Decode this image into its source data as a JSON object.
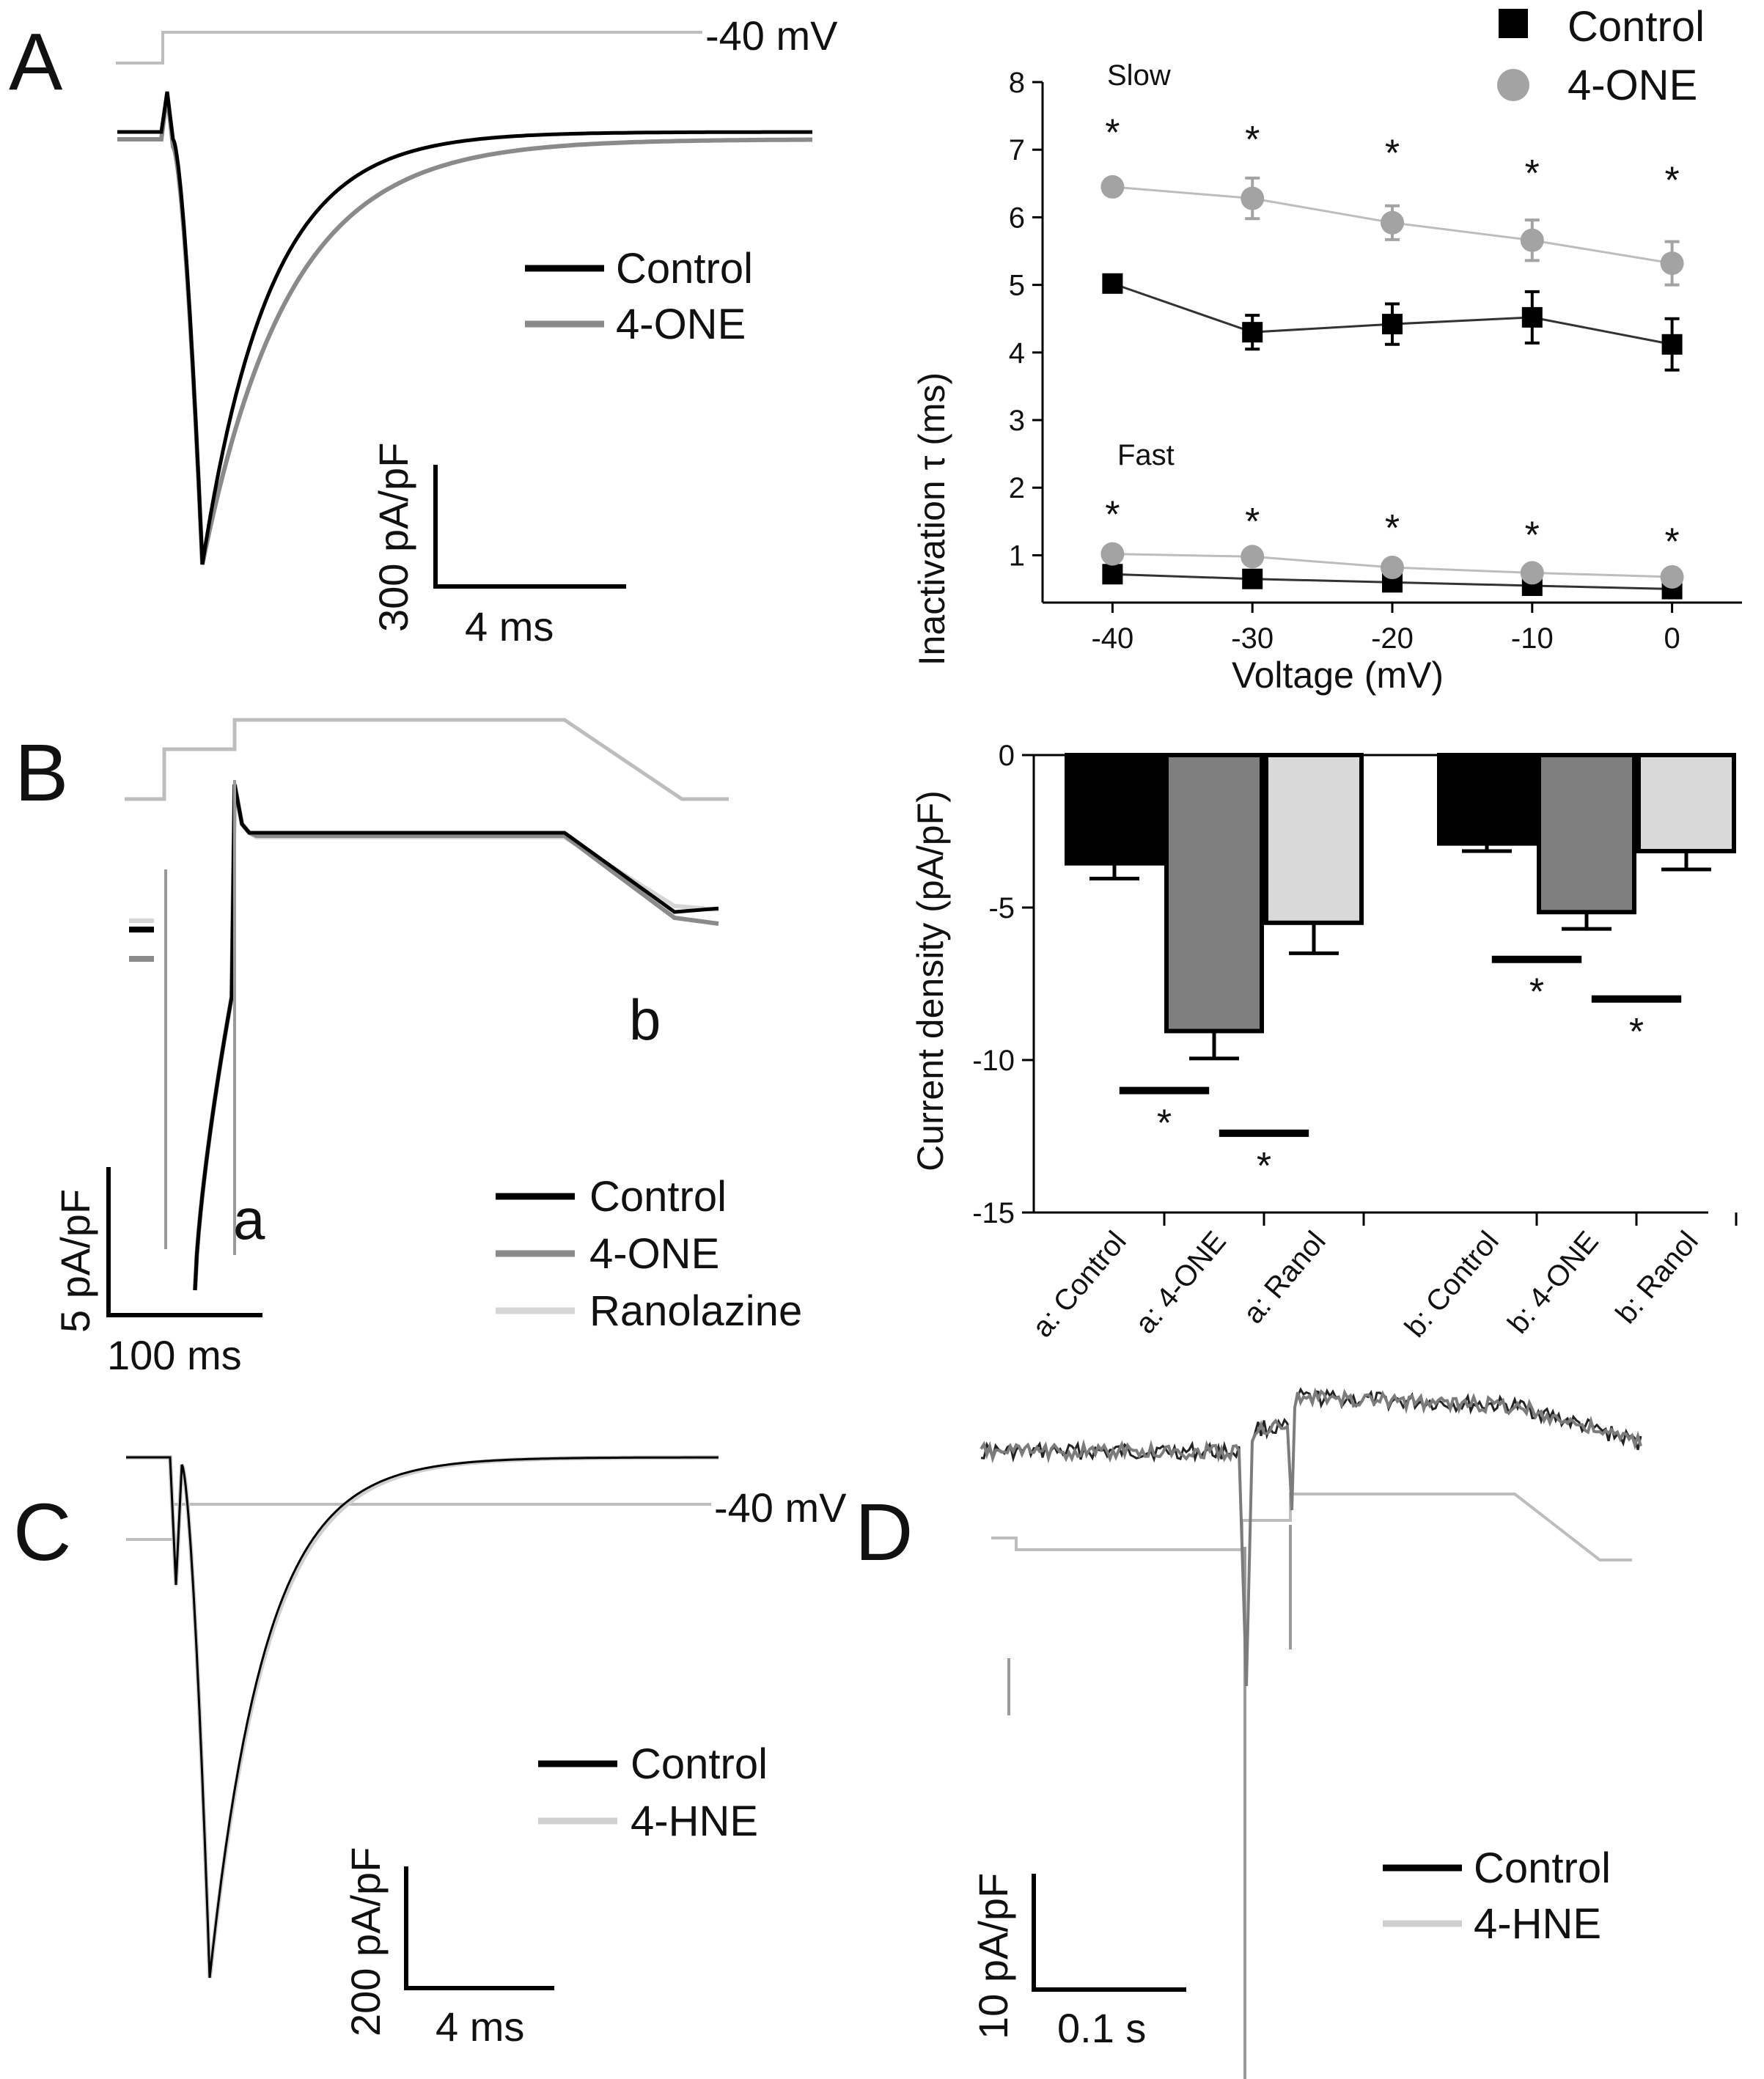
{
  "colors": {
    "control": "#000000",
    "treatment": "#8a8a8a",
    "ranolazine": "#d6d6d6",
    "hne": "#cfcfcf",
    "protocol": "#bdbdbd",
    "bar_control": "#000000",
    "bar_one": "#7f7f7f",
    "bar_ranol": "#d9d9d9"
  },
  "panels": {
    "A": {
      "letter": "A",
      "voltage_label": "-40 mV",
      "legend": [
        "Control",
        "4-ONE"
      ],
      "scale_y": "300 pA/pF",
      "scale_x": "4 ms"
    },
    "B": {
      "letter": "B",
      "legend": [
        "Control",
        "4-ONE",
        "Ranolazine"
      ],
      "label_a": "a",
      "label_b": "b",
      "scale_y": "5 pA/pF",
      "scale_x": "100 ms"
    },
    "C": {
      "letter": "C",
      "voltage_label": "-40 mV",
      "legend": [
        "Control",
        "4-HNE"
      ],
      "scale_y": "200 pA/pF",
      "scale_x": "4 ms"
    },
    "D": {
      "letter": "D",
      "legend": [
        "Control",
        "4-HNE"
      ],
      "scale_y": "10 pA/pF",
      "scale_x": "0.1 s"
    }
  },
  "chart_data": [
    {
      "panel": "A",
      "type": "scatter",
      "title": "",
      "xlabel": "Voltage (mV)",
      "ylabel": "Inactivation τ (ms)",
      "xlim": [
        -45,
        5
      ],
      "ylim": [
        0.3,
        8
      ],
      "x": [
        -40,
        -30,
        -20,
        -10,
        0
      ],
      "xticks": [
        "-40",
        "-30",
        "-20",
        "-10",
        "0"
      ],
      "yticks": [
        "1",
        "2",
        "3",
        "4",
        "5",
        "6",
        "7",
        "8"
      ],
      "legend": [
        "Control",
        "4-ONE"
      ],
      "legend_position": "top-right",
      "group_labels": [
        "Slow",
        "Fast"
      ],
      "significance": "*",
      "series": [
        {
          "name": "Control",
          "group": "Slow",
          "values": [
            5.02,
            4.3,
            4.42,
            4.52,
            4.12
          ],
          "errors": [
            0.12,
            0.25,
            0.3,
            0.38,
            0.38
          ]
        },
        {
          "name": "4-ONE",
          "group": "Slow",
          "values": [
            6.45,
            6.28,
            5.92,
            5.66,
            5.32
          ],
          "errors": [
            0.08,
            0.3,
            0.25,
            0.3,
            0.32
          ]
        },
        {
          "name": "Control",
          "group": "Fast",
          "values": [
            0.72,
            0.65,
            0.6,
            0.55,
            0.5
          ],
          "errors": [
            0.05,
            0.05,
            0.05,
            0.05,
            0.05
          ]
        },
        {
          "name": "4-ONE",
          "group": "Fast",
          "values": [
            1.02,
            0.98,
            0.82,
            0.74,
            0.68
          ],
          "errors": [
            0.05,
            0.05,
            0.05,
            0.05,
            0.05
          ]
        }
      ],
      "star_y": [
        7.45,
        7.35,
        7.15,
        6.85,
        6.75
      ],
      "star_y_fast": [
        1.8,
        1.7,
        1.6,
        1.5,
        1.4
      ]
    },
    {
      "panel": "B",
      "type": "bar",
      "title": "",
      "xlabel": "",
      "ylabel": "Current density  (pA/pF)",
      "ylim": [
        -15,
        0
      ],
      "yticks": [
        "0",
        "-5",
        "-10",
        "-15"
      ],
      "categories": [
        "a: Control",
        "a: 4-ONE",
        "a: Ranol",
        "b: Control",
        "b: 4-ONE",
        "b: Ranol"
      ],
      "values": [
        -3.55,
        -9.05,
        -5.5,
        -2.9,
        -5.15,
        -3.15
      ],
      "errors": [
        0.5,
        0.9,
        1.0,
        0.25,
        0.55,
        0.6
      ],
      "significance": "*",
      "brackets": [
        {
          "x1": 0.55,
          "x2": 1.45,
          "y": -11.0
        },
        {
          "x1": 1.55,
          "x2": 2.45,
          "y": -12.4
        },
        {
          "x1": 3.55,
          "x2": 4.45,
          "y": -6.7
        },
        {
          "x1": 4.55,
          "x2": 5.45,
          "y": -8.0
        }
      ]
    }
  ]
}
